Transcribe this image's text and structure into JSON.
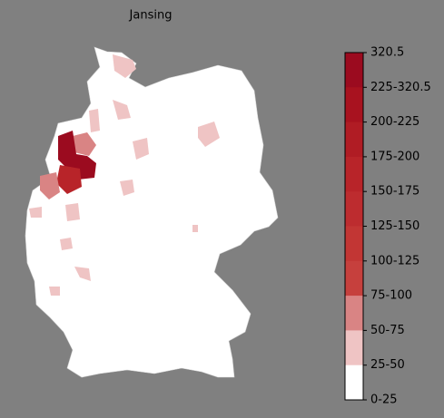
{
  "title": "Jansing",
  "colorbar": {
    "labels": [
      "320.5",
      "225-320.5",
      "200-225",
      "175-200",
      "150-175",
      "125-150",
      "100-125",
      "75-100",
      "50-75",
      "25-50",
      "0-25"
    ],
    "colors": [
      "#9b0b1f",
      "#a8121f",
      "#b01c24",
      "#b82429",
      "#bd2c2f",
      "#c23634",
      "#c6403d",
      "#d98484",
      "#efc4c4",
      "#ffffff"
    ]
  }
}
